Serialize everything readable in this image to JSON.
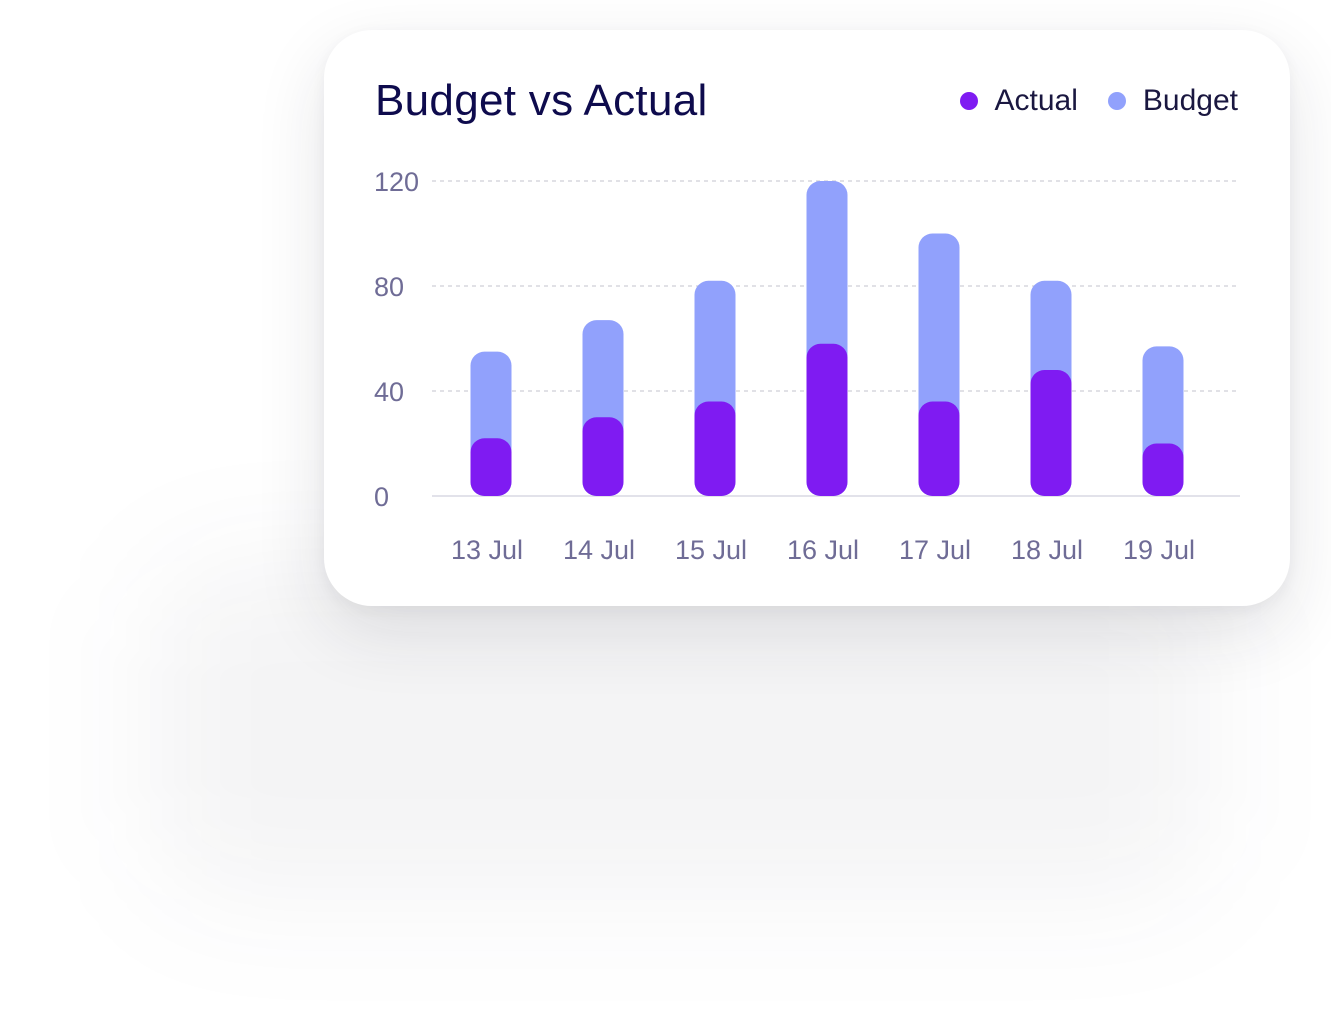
{
  "colors": {
    "title": "#0e0b4d",
    "legend_text": "#1a1740",
    "actual": "#7f1bf2",
    "budget": "#91a1fc",
    "tick_text": "#6f6c96",
    "grid": "#cfcfd8",
    "baseline": "#d9d9e3"
  },
  "chart_data": {
    "type": "bar",
    "title": "Budget vs Actual",
    "xlabel": "",
    "ylabel": "",
    "categories": [
      "13 Jul",
      "14 Jul",
      "15 Jul",
      "16 Jul",
      "17 Jul",
      "18 Jul",
      "19 Jul"
    ],
    "series": [
      {
        "name": "Budget",
        "values": [
          55,
          67,
          82,
          120,
          100,
          82,
          57
        ]
      },
      {
        "name": "Actual",
        "values": [
          22,
          30,
          36,
          58,
          36,
          48,
          20
        ]
      }
    ],
    "ylim": [
      0,
      120
    ],
    "yticks": [
      0,
      40,
      80,
      120
    ],
    "grid": true,
    "legend_position": "top-right"
  }
}
